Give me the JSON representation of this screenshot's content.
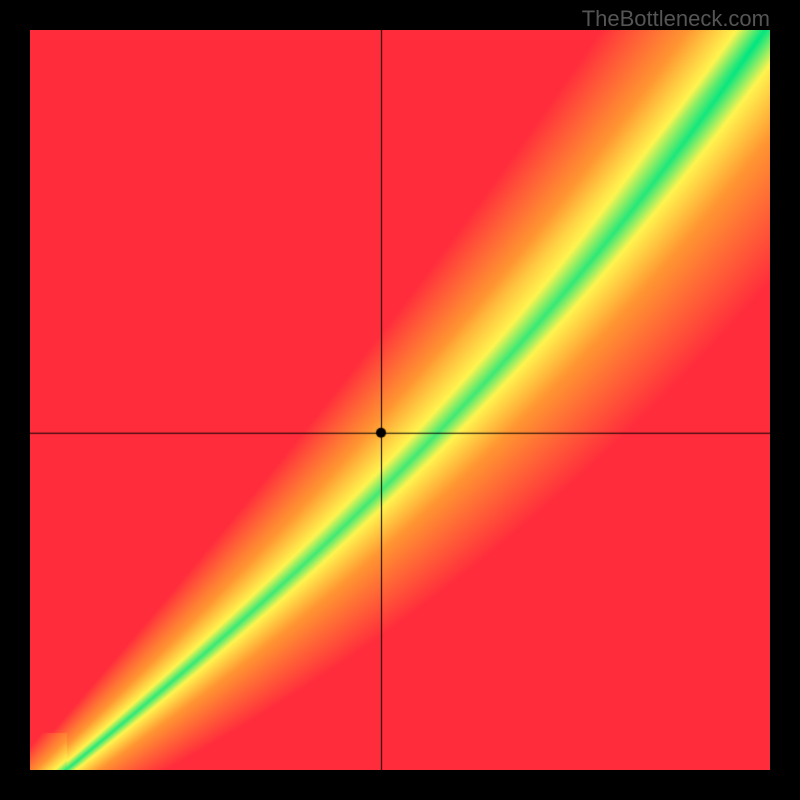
{
  "watermark": "TheBottleneck.com",
  "chart": {
    "type": "heatmap",
    "canvas_size": 740,
    "resolution": 160,
    "outer_background": "#000000",
    "colors": {
      "green": [
        0,
        230,
        130
      ],
      "yellow": [
        255,
        245,
        80
      ],
      "orange": [
        255,
        150,
        50
      ],
      "red": [
        255,
        45,
        60
      ]
    },
    "ideal_curve": {
      "comment": "u in [0,1] → ideal v; green band hugs this curve",
      "anchor_shift": 0.06,
      "s_curve_strength": 0.35,
      "slope": 1.02,
      "intercept": -0.04
    },
    "band_width": {
      "base": 0.018,
      "growth": 0.11
    },
    "crosshair": {
      "u": 0.475,
      "v": 0.455,
      "line_color": "#000000",
      "line_width": 1,
      "dot_radius": 5,
      "dot_color": "#000000"
    }
  }
}
